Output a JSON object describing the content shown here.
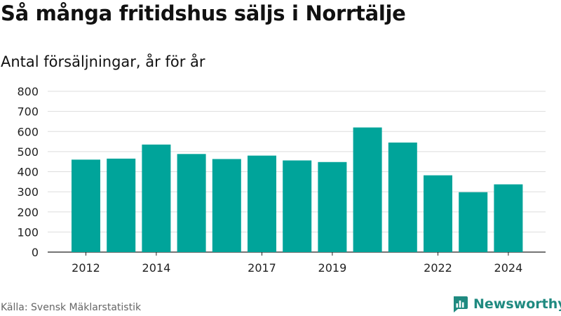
{
  "header": {
    "title": "Så många fritidshus säljs i Norrtälje",
    "subtitle": "Antal försäljningar, år för år"
  },
  "footer": {
    "source": "Källa: Svensk Mäklarstatistik",
    "brand": "Newsworthy"
  },
  "colors": {
    "bar": "#00a49a",
    "brand": "#1f8a80",
    "grid": "#dddddd",
    "axis": "#222222"
  },
  "icons": {
    "brand": "newsworthy-logo-icon"
  },
  "chart_data": {
    "type": "bar",
    "categories": [
      "2012",
      "2013",
      "2014",
      "2015",
      "2016",
      "2017",
      "2018",
      "2019",
      "2020",
      "2021",
      "2022",
      "2023",
      "2024"
    ],
    "x_tick_labels": [
      "2012",
      "",
      "2014",
      "",
      "",
      "2017",
      "",
      "2019",
      "",
      "",
      "2022",
      "",
      "2024"
    ],
    "values": [
      460,
      465,
      535,
      488,
      463,
      480,
      456,
      448,
      620,
      545,
      382,
      298,
      337
    ],
    "ylim": [
      0,
      800
    ],
    "yticks": [
      0,
      100,
      200,
      300,
      400,
      500,
      600,
      700,
      800
    ],
    "xlabel": "",
    "ylabel": "",
    "grid": true,
    "legend": "none"
  }
}
